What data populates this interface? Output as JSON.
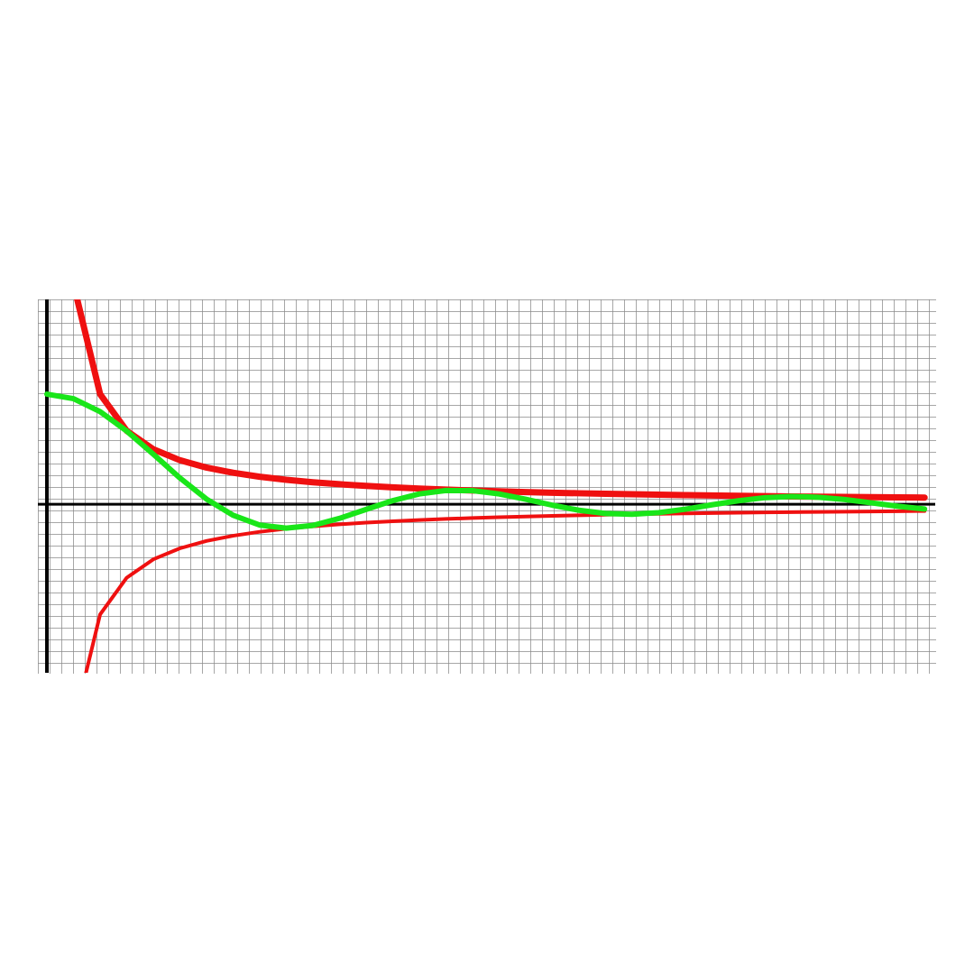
{
  "chart_data": {
    "type": "line",
    "x": [
      0,
      0.5,
      1,
      1.5,
      2,
      2.5,
      3,
      3.5,
      4,
      4.5,
      5,
      5.5,
      6,
      6.5,
      7,
      7.5,
      8,
      8.5,
      9,
      9.5,
      10,
      10.5,
      11,
      11.5,
      12,
      12.5,
      13,
      13.5,
      14,
      14.5,
      15,
      15.5,
      16,
      16.5
    ],
    "series": [
      {
        "color": "#ef1010",
        "line_width": 7,
        "values": [
          null,
          2,
          1,
          0.667,
          0.5,
          0.4,
          0.333,
          0.286,
          0.25,
          0.222,
          0.2,
          0.182,
          0.167,
          0.154,
          0.143,
          0.133,
          0.125,
          0.118,
          0.111,
          0.105,
          0.1,
          0.095,
          0.091,
          0.087,
          0.083,
          0.08,
          0.077,
          0.074,
          0.071,
          0.069,
          0.067,
          0.065,
          0.063,
          0.061
        ]
      },
      {
        "color": "#ef1010",
        "line_width": 4,
        "values": [
          null,
          -2,
          -1,
          -0.667,
          -0.5,
          -0.4,
          -0.333,
          -0.286,
          -0.25,
          -0.222,
          -0.2,
          -0.182,
          -0.167,
          -0.154,
          -0.143,
          -0.133,
          -0.125,
          -0.118,
          -0.111,
          -0.105,
          -0.1,
          -0.095,
          -0.091,
          -0.087,
          -0.083,
          -0.08,
          -0.077,
          -0.074,
          -0.071,
          -0.069,
          -0.067,
          -0.065,
          -0.063,
          -0.061
        ]
      },
      {
        "color": "#19e619",
        "line_width": 6,
        "values": [
          1,
          0.959,
          0.841,
          0.665,
          0.455,
          0.239,
          0.047,
          -0.1,
          -0.189,
          -0.217,
          -0.192,
          -0.128,
          -0.047,
          0.033,
          0.094,
          0.125,
          0.124,
          0.094,
          0.046,
          -0.008,
          -0.054,
          -0.084,
          -0.091,
          -0.076,
          -0.045,
          -0.005,
          0.032,
          0.06,
          0.071,
          0.064,
          0.043,
          0.013,
          -0.018,
          -0.043
        ]
      }
    ],
    "xlim": [
      -0.17,
      16.7
    ],
    "ylim": [
      -1.53,
      1.86
    ],
    "grid": true
  }
}
